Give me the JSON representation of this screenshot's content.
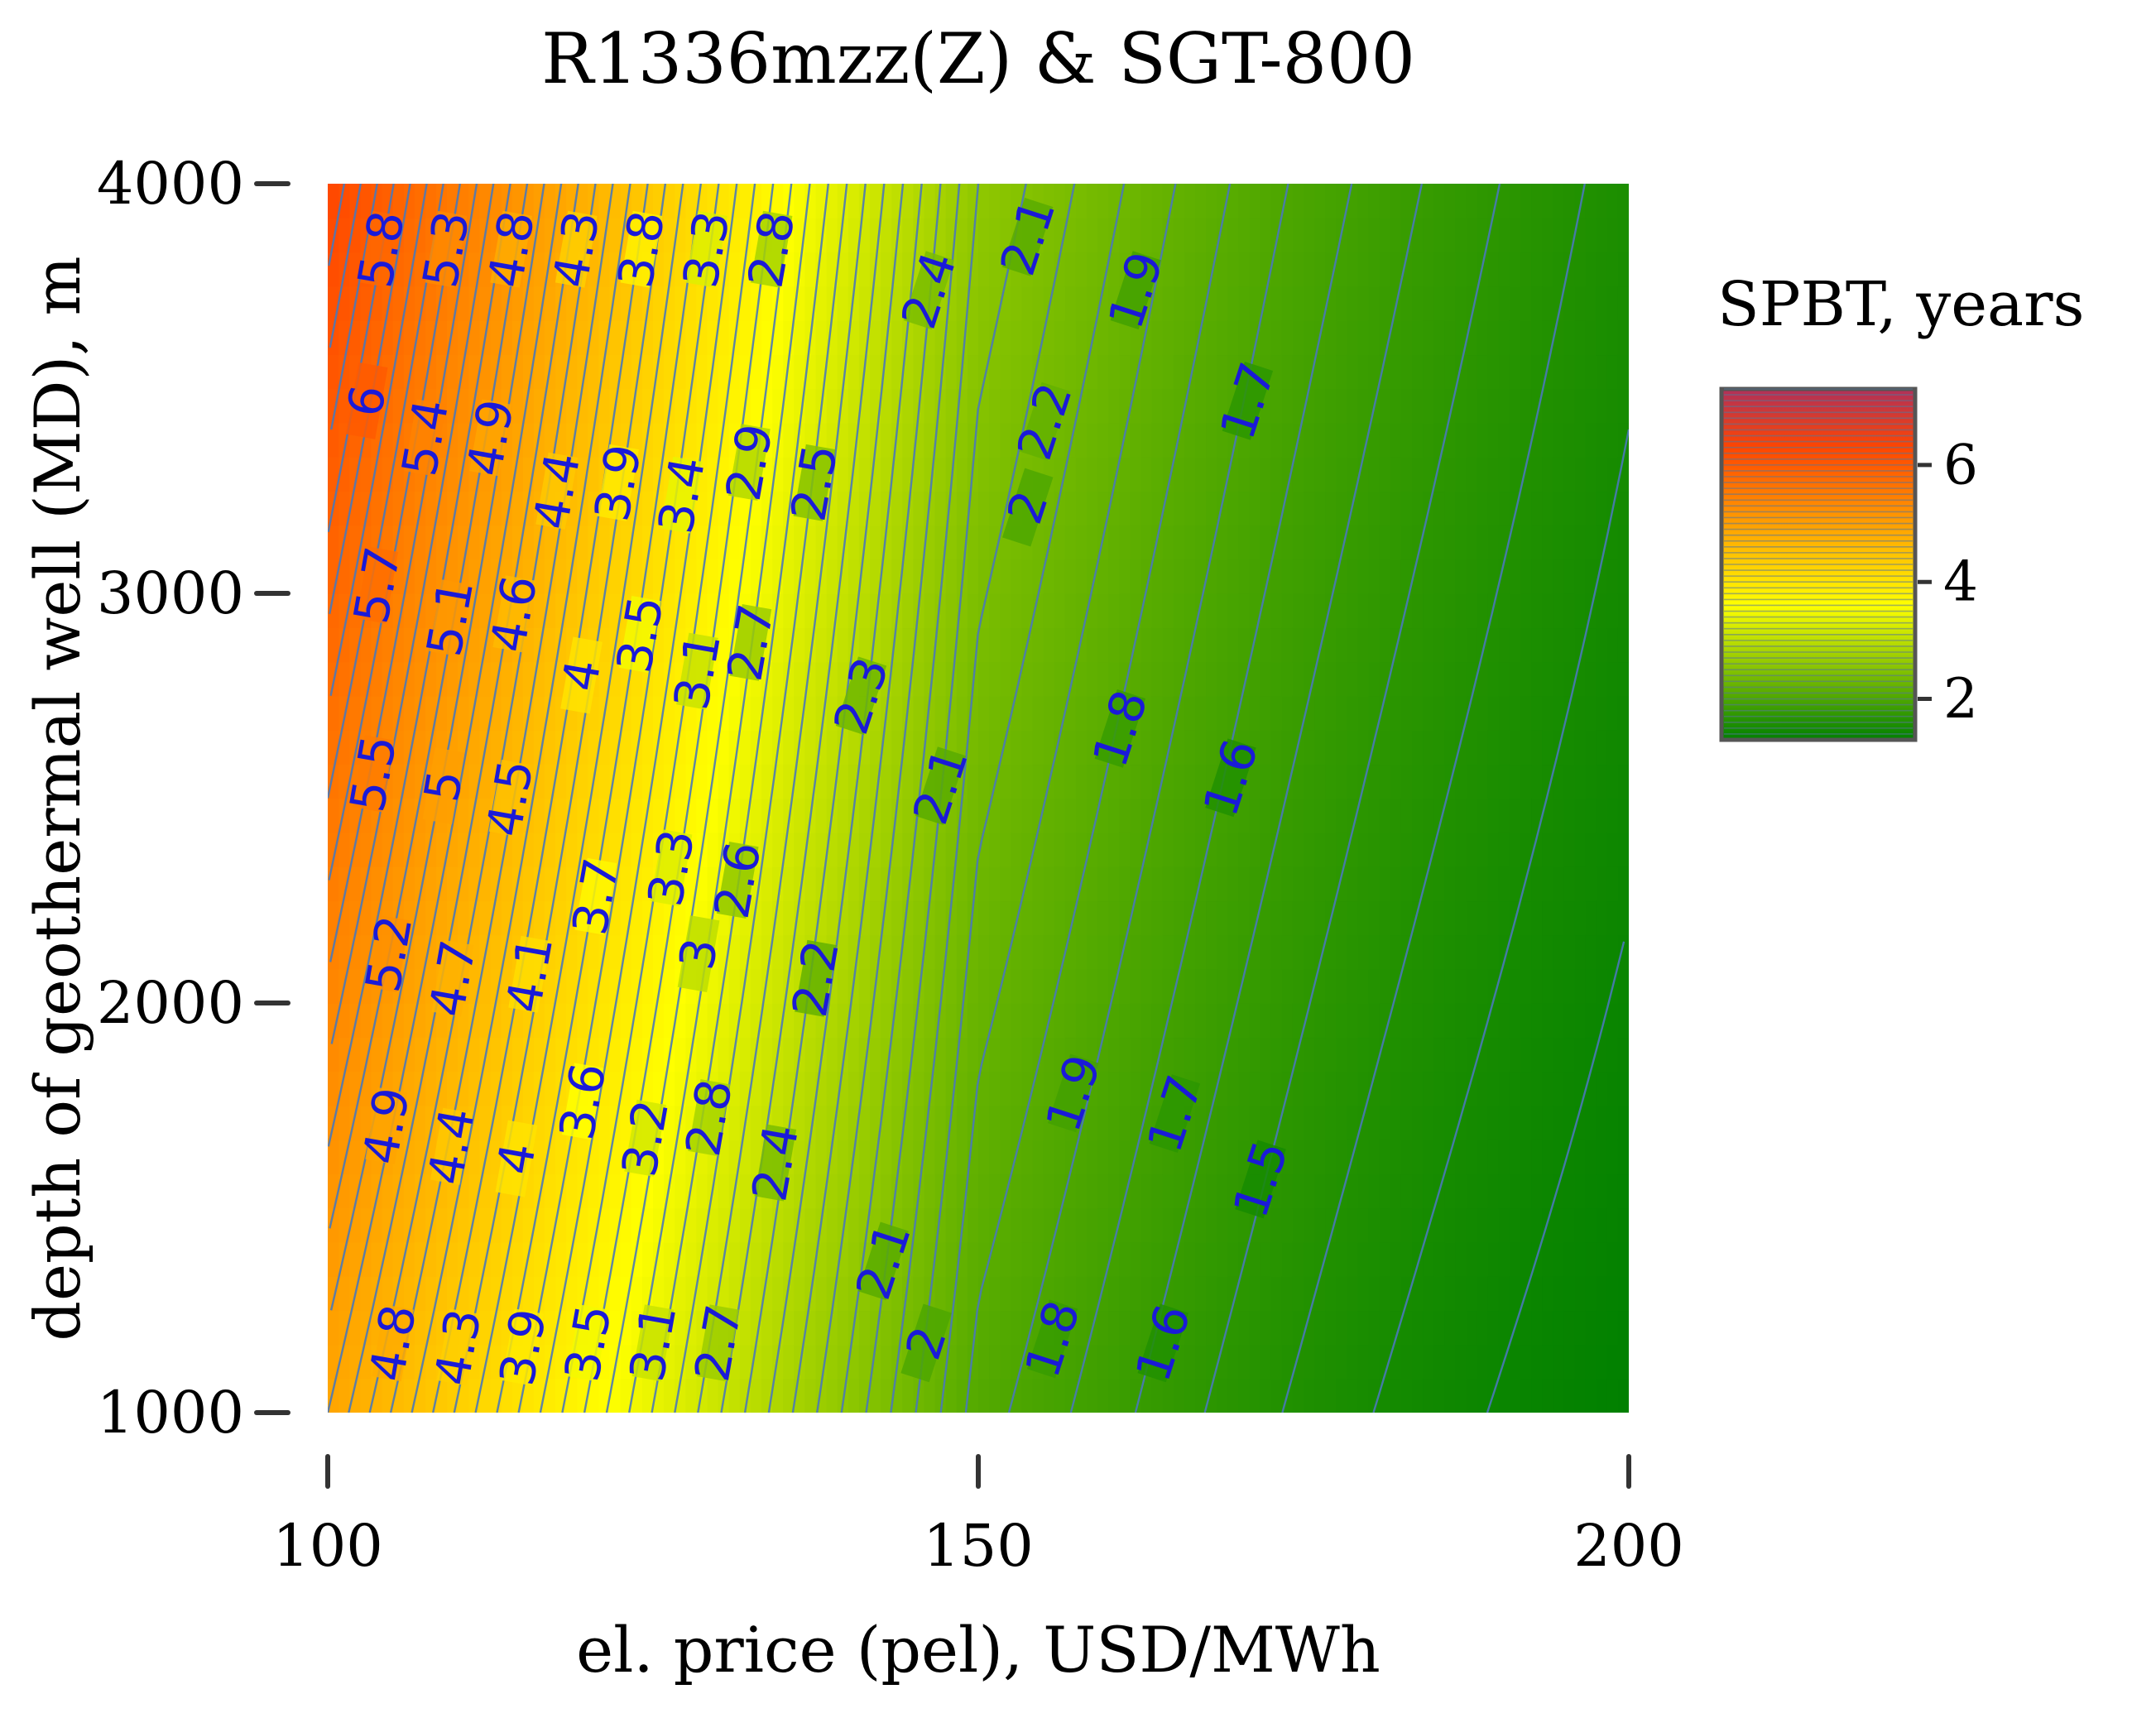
{
  "chart_data": {
    "type": "heatmap",
    "subtype": "filled-contour",
    "title": "R1336mzz(Z) & SGT-800",
    "xlabel": "el. price (pel), USD/MWh",
    "ylabel": "depth of geothermal well (MD), m",
    "xlim": [
      100,
      200
    ],
    "ylim": [
      1000,
      4000
    ],
    "x_ticks": [
      100,
      150,
      200
    ],
    "x_tick_labels": [
      "100",
      "150",
      "200"
    ],
    "y_ticks": [
      1000,
      2000,
      3000,
      4000
    ],
    "y_tick_labels": [
      "1000",
      "2000",
      "3000",
      "4000"
    ],
    "colorbar": {
      "title": "SPBT, years",
      "range": [
        1.3,
        7.3
      ],
      "ticks": [
        2,
        4,
        6
      ],
      "tick_labels": [
        "2",
        "4",
        "6"
      ],
      "colors": [
        "#008000",
        "#ffff00",
        "#ff4500",
        "#b0305a"
      ]
    },
    "value_range": {
      "min": 1.3,
      "max": 6.3
    },
    "surface_corners": {
      "x100_y1000": 4.9,
      "x100_y4000": 6.3,
      "x150_y1000": 2.05,
      "x150_y4000": 2.6,
      "x200_y1000": 1.3,
      "x200_y4000": 1.55
    },
    "contour_labels": [
      {
        "value": "5.8",
        "x": 104.1,
        "y": 3840
      },
      {
        "value": "5.3",
        "x": 109.1,
        "y": 3840
      },
      {
        "value": "4.8",
        "x": 114.1,
        "y": 3840
      },
      {
        "value": "4.3",
        "x": 119.1,
        "y": 3840
      },
      {
        "value": "3.8",
        "x": 124.1,
        "y": 3840
      },
      {
        "value": "3.3",
        "x": 129.1,
        "y": 3840
      },
      {
        "value": "2.8",
        "x": 134.1,
        "y": 3840
      },
      {
        "value": "2.4",
        "x": 146.2,
        "y": 3740
      },
      {
        "value": "2.1",
        "x": 153.8,
        "y": 3870
      },
      {
        "value": "1.9",
        "x": 162.1,
        "y": 3740
      },
      {
        "value": "1.7",
        "x": 170.7,
        "y": 3470
      },
      {
        "value": "6",
        "x": 103.0,
        "y": 3470
      },
      {
        "value": "5.4",
        "x": 107.5,
        "y": 3380
      },
      {
        "value": "4.9",
        "x": 112.5,
        "y": 3380
      },
      {
        "value": "4.4",
        "x": 117.6,
        "y": 3250
      },
      {
        "value": "3.9",
        "x": 122.3,
        "y": 3270
      },
      {
        "value": "3.4",
        "x": 127.2,
        "y": 3240
      },
      {
        "value": "2.9",
        "x": 132.4,
        "y": 3320
      },
      {
        "value": "2.5",
        "x": 137.4,
        "y": 3270
      },
      {
        "value": "2.2",
        "x": 155.1,
        "y": 3420
      },
      {
        "value": "2",
        "x": 153.8,
        "y": 3210
      },
      {
        "value": "5.7",
        "x": 103.8,
        "y": 3020
      },
      {
        "value": "5.1",
        "x": 109.4,
        "y": 2940
      },
      {
        "value": "4.6",
        "x": 114.3,
        "y": 2950
      },
      {
        "value": "4",
        "x": 119.5,
        "y": 2800
      },
      {
        "value": "3.5",
        "x": 124.0,
        "y": 2900
      },
      {
        "value": "3.1",
        "x": 128.4,
        "y": 2810
      },
      {
        "value": "2.7",
        "x": 132.5,
        "y": 2880
      },
      {
        "value": "2.3",
        "x": 141.0,
        "y": 2750
      },
      {
        "value": "1.8",
        "x": 160.9,
        "y": 2670
      },
      {
        "value": "1.6",
        "x": 169.4,
        "y": 2550
      },
      {
        "value": "5.5",
        "x": 103.5,
        "y": 2560
      },
      {
        "value": "5",
        "x": 108.9,
        "y": 2530
      },
      {
        "value": "4.5",
        "x": 114.0,
        "y": 2500
      },
      {
        "value": "2.1",
        "x": 147.1,
        "y": 2530
      },
      {
        "value": "3.7",
        "x": 120.6,
        "y": 2260
      },
      {
        "value": "3.3",
        "x": 126.4,
        "y": 2330
      },
      {
        "value": "2.6",
        "x": 131.5,
        "y": 2300
      },
      {
        "value": "5.2",
        "x": 104.7,
        "y": 2120
      },
      {
        "value": "4.7",
        "x": 109.6,
        "y": 2060
      },
      {
        "value": "4.1",
        "x": 115.5,
        "y": 2070
      },
      {
        "value": "3",
        "x": 128.5,
        "y": 2120
      },
      {
        "value": "2.2",
        "x": 137.5,
        "y": 2060
      },
      {
        "value": "4.9",
        "x": 104.5,
        "y": 1700
      },
      {
        "value": "4.4",
        "x": 109.5,
        "y": 1650
      },
      {
        "value": "4",
        "x": 114.5,
        "y": 1620
      },
      {
        "value": "3.6",
        "x": 119.6,
        "y": 1760
      },
      {
        "value": "3.2",
        "x": 124.4,
        "y": 1670
      },
      {
        "value": "2.8",
        "x": 129.3,
        "y": 1720
      },
      {
        "value": "2.4",
        "x": 134.4,
        "y": 1610
      },
      {
        "value": "1.9",
        "x": 157.3,
        "y": 1780
      },
      {
        "value": "1.7",
        "x": 165.1,
        "y": 1730
      },
      {
        "value": "1.5",
        "x": 171.7,
        "y": 1570
      },
      {
        "value": "2.1",
        "x": 142.7,
        "y": 1370
      },
      {
        "value": "4.8",
        "x": 105.0,
        "y": 1170
      },
      {
        "value": "4.3",
        "x": 110.0,
        "y": 1160
      },
      {
        "value": "3.9",
        "x": 115.0,
        "y": 1160
      },
      {
        "value": "3.5",
        "x": 120.0,
        "y": 1170
      },
      {
        "value": "3.1",
        "x": 125.0,
        "y": 1170
      },
      {
        "value": "2.7",
        "x": 130.0,
        "y": 1170
      },
      {
        "value": "2",
        "x": 146.0,
        "y": 1170
      },
      {
        "value": "1.8",
        "x": 155.7,
        "y": 1180
      },
      {
        "value": "1.6",
        "x": 164.2,
        "y": 1170
      }
    ],
    "label_color": "#1a1ad8",
    "contour_line_color": "#4a78b8"
  }
}
